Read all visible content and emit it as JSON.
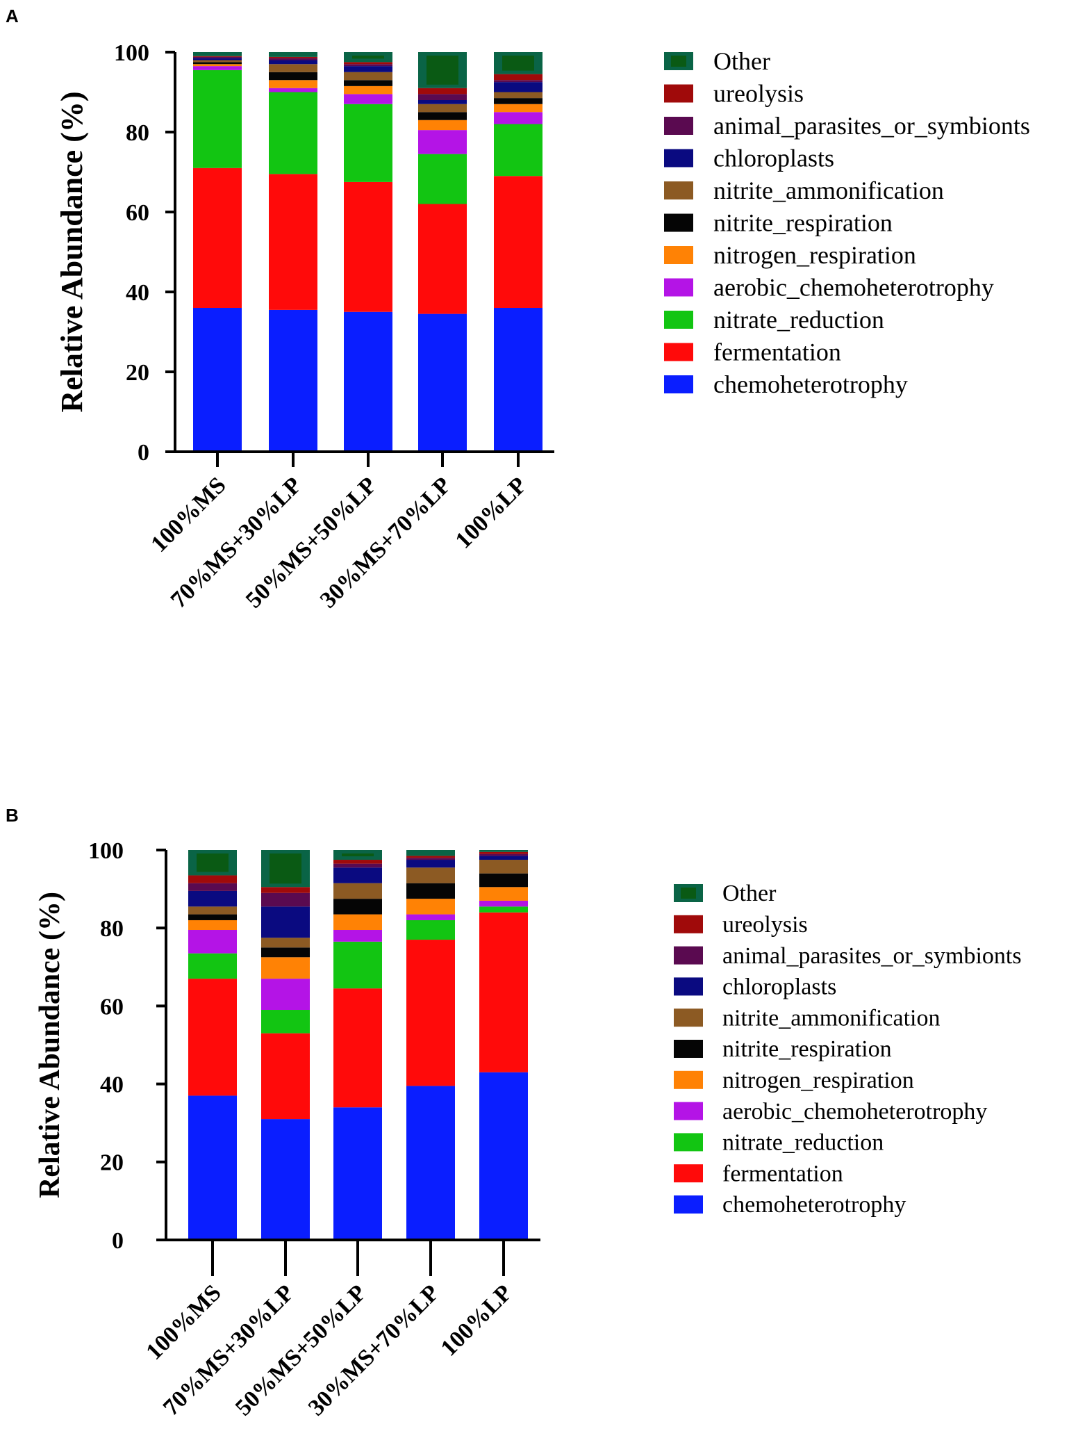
{
  "colors": {
    "chemoheterotrophy": "#0a1eff",
    "fermentation": "#ff0a0a",
    "nitrate_reduction": "#12c512",
    "aerobic_chemoheterotrophy": "#b414e6",
    "nitrogen_respiration": "#ff8205",
    "nitrite_respiration": "#050505",
    "nitrite_ammonification": "#8c5a23",
    "chloroplasts": "#0a0a80",
    "animal_parasites_or_symbionts": "#5a0a50",
    "ureolysis": "#a00a0a",
    "Other": "#0a6446",
    "Other_inner": "#0a5a14"
  },
  "chart_data": [
    {
      "panel": "A",
      "type": "bar",
      "stacked": true,
      "ylabel": "Relative Abundance (%)",
      "xlabel": "",
      "ylim": [
        0,
        100
      ],
      "yticks": [
        "0",
        "20",
        "40",
        "60",
        "80",
        "100"
      ],
      "categories": [
        "100%MS",
        "70%MS+30%LP",
        "50%MS+50%LP",
        "30%MS+70%LP",
        "100%LP"
      ],
      "legend": [
        "Other",
        "ureolysis",
        "animal_parasites_or_symbionts",
        "chloroplasts",
        "nitrite_ammonification",
        "nitrite_respiration",
        "nitrogen_respiration",
        "aerobic_chemoheterotrophy",
        "nitrate_reduction",
        "fermentation",
        "chemoheterotrophy"
      ],
      "series": [
        {
          "name": "chemoheterotrophy",
          "values": [
            36.0,
            35.5,
            35.0,
            34.5,
            36.0
          ]
        },
        {
          "name": "fermentation",
          "values": [
            35.0,
            34.0,
            32.5,
            27.5,
            33.0
          ]
        },
        {
          "name": "nitrate_reduction",
          "values": [
            24.5,
            20.5,
            19.5,
            12.5,
            13.0
          ]
        },
        {
          "name": "aerobic_chemoheterotrophy",
          "values": [
            1.0,
            1.0,
            2.5,
            6.0,
            3.0
          ]
        },
        {
          "name": "nitrogen_respiration",
          "values": [
            0.5,
            2.0,
            2.0,
            2.5,
            2.0
          ]
        },
        {
          "name": "nitrite_respiration",
          "values": [
            0.5,
            2.0,
            1.5,
            2.0,
            1.5
          ]
        },
        {
          "name": "nitrite_ammonification",
          "values": [
            0.5,
            2.0,
            2.0,
            2.0,
            1.5
          ]
        },
        {
          "name": "chloroplasts",
          "values": [
            0.5,
            1.0,
            1.5,
            1.0,
            2.5
          ]
        },
        {
          "name": "animal_parasites_or_symbionts",
          "values": [
            0.3,
            0.5,
            0.5,
            1.5,
            0.5
          ]
        },
        {
          "name": "ureolysis",
          "values": [
            0.2,
            0.3,
            0.5,
            1.5,
            1.5
          ]
        },
        {
          "name": "Other",
          "values": [
            1.0,
            1.2,
            2.5,
            9.0,
            5.5
          ]
        }
      ]
    },
    {
      "panel": "B",
      "type": "bar",
      "stacked": true,
      "ylabel": "Relative Abundance (%)",
      "xlabel": "",
      "ylim": [
        0,
        100
      ],
      "yticks": [
        "0",
        "20",
        "40",
        "60",
        "80",
        "100"
      ],
      "categories": [
        "100%MS",
        "70%MS+30%LP",
        "50%MS+50%LP",
        "30%MS+70%LP",
        "100%LP"
      ],
      "legend": [
        "Other",
        "ureolysis",
        "animal_parasites_or_symbionts",
        "chloroplasts",
        "nitrite_ammonification",
        "nitrite_respiration",
        "nitrogen_respiration",
        "aerobic_chemoheterotrophy",
        "nitrate_reduction",
        "fermentation",
        "chemoheterotrophy"
      ],
      "series": [
        {
          "name": "chemoheterotrophy",
          "values": [
            37.0,
            31.0,
            34.0,
            39.5,
            43.0
          ]
        },
        {
          "name": "fermentation",
          "values": [
            30.0,
            22.0,
            30.5,
            37.5,
            41.0
          ]
        },
        {
          "name": "nitrate_reduction",
          "values": [
            6.5,
            6.0,
            12.0,
            5.0,
            1.5
          ]
        },
        {
          "name": "aerobic_chemoheterotrophy",
          "values": [
            6.0,
            8.0,
            3.0,
            1.5,
            1.5
          ]
        },
        {
          "name": "nitrogen_respiration",
          "values": [
            2.5,
            5.5,
            4.0,
            4.0,
            3.5
          ]
        },
        {
          "name": "nitrite_respiration",
          "values": [
            1.5,
            2.5,
            4.0,
            4.0,
            3.5
          ]
        },
        {
          "name": "nitrite_ammonification",
          "values": [
            2.0,
            2.5,
            4.0,
            4.0,
            3.5
          ]
        },
        {
          "name": "chloroplasts",
          "values": [
            4.0,
            8.0,
            4.0,
            2.0,
            1.0
          ]
        },
        {
          "name": "animal_parasites_or_symbionts",
          "values": [
            2.0,
            3.5,
            1.0,
            0.5,
            0.5
          ]
        },
        {
          "name": "ureolysis",
          "values": [
            2.0,
            1.5,
            1.0,
            0.5,
            0.5
          ]
        },
        {
          "name": "Other",
          "values": [
            6.5,
            9.5,
            2.5,
            1.5,
            0.5
          ]
        }
      ]
    }
  ]
}
